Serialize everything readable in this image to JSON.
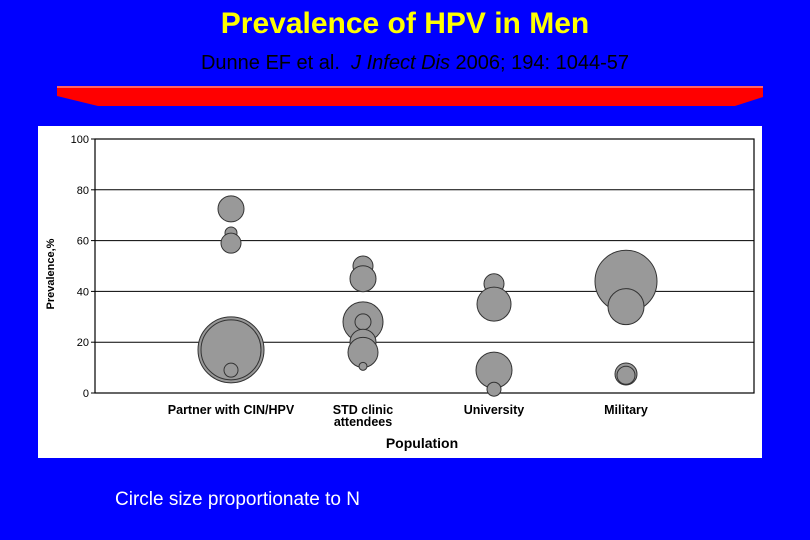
{
  "slide": {
    "title": "Prevalence of HPV in Men",
    "citation_authors": "Dunne EF et al.",
    "citation_journal": "J Infect Dis",
    "citation_details": "2006; 194: 1044-57",
    "caption": "Circle size proportionate to N"
  },
  "colors": {
    "background": "#0000ff",
    "title": "#ffff00",
    "accent_bar": "#ff0000",
    "bubble_fill": "#999999",
    "bubble_stroke": "#333333"
  },
  "chart_data": {
    "type": "scatter",
    "xlabel": "Population",
    "ylabel": "Prevalence,%",
    "ylim": [
      0,
      100
    ],
    "yticks": [
      0,
      20,
      40,
      60,
      80,
      100
    ],
    "grid": true,
    "categories": [
      {
        "name": "Partner with CIN/HPV",
        "line2": ""
      },
      {
        "name": "STD clinic",
        "line2": "attendees"
      },
      {
        "name": "University",
        "line2": ""
      },
      {
        "name": "Military",
        "line2": ""
      }
    ],
    "points": [
      {
        "category": 0,
        "y": 72.5,
        "size": 13
      },
      {
        "category": 0,
        "y": 63,
        "size": 6
      },
      {
        "category": 0,
        "y": 59,
        "size": 10
      },
      {
        "category": 0,
        "y": 17,
        "size": 33
      },
      {
        "category": 0,
        "y": 17,
        "size": 30
      },
      {
        "category": 0,
        "y": 9,
        "size": 7
      },
      {
        "category": 1,
        "y": 50,
        "size": 10
      },
      {
        "category": 1,
        "y": 45,
        "size": 13
      },
      {
        "category": 1,
        "y": 28,
        "size": 20
      },
      {
        "category": 1,
        "y": 28,
        "size": 8
      },
      {
        "category": 1,
        "y": 20,
        "size": 13
      },
      {
        "category": 1,
        "y": 16,
        "size": 15
      },
      {
        "category": 1,
        "y": 10.5,
        "size": 4
      },
      {
        "category": 2,
        "y": 43,
        "size": 10
      },
      {
        "category": 2,
        "y": 35,
        "size": 17
      },
      {
        "category": 2,
        "y": 9,
        "size": 18
      },
      {
        "category": 2,
        "y": 1.5,
        "size": 7
      },
      {
        "category": 3,
        "y": 44,
        "size": 31
      },
      {
        "category": 3,
        "y": 34,
        "size": 18
      },
      {
        "category": 3,
        "y": 7.5,
        "size": 11
      },
      {
        "category": 3,
        "y": 7,
        "size": 9
      }
    ]
  }
}
